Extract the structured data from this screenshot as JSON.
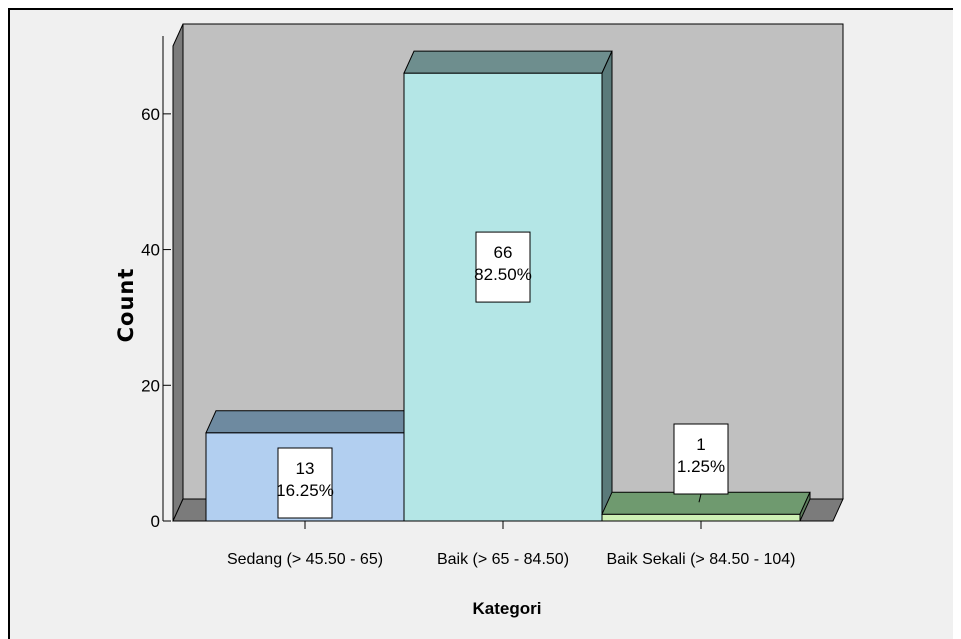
{
  "chart_data": {
    "type": "bar",
    "categories": [
      "Sedang (> 45.50 - 65)",
      "Baik (> 65 - 84.50)",
      "Baik Sekali (> 84.50 - 104)"
    ],
    "values": [
      13,
      66,
      1
    ],
    "percentages": [
      "16.25%",
      "82.50%",
      "1.25%"
    ],
    "data_labels": [
      {
        "count": "13",
        "percent": "16.25%"
      },
      {
        "count": "66",
        "percent": "82.50%"
      },
      {
        "count": "1",
        "percent": "1.25%"
      }
    ],
    "xlabel": "Kategori",
    "ylabel": "Count",
    "ylim": [
      0,
      70
    ],
    "yticks": [
      0,
      20,
      40,
      60
    ],
    "style": "3d",
    "colors": {
      "bars": [
        "#b2cff0",
        "#b4e6e6",
        "#cdf0b4"
      ],
      "bar_tops": [
        "#6e8aa0",
        "#6e8e8e",
        "#6f9a6f"
      ],
      "bar_sides": [
        "#5f7b8a",
        "#5a7a7a",
        "#5e7e5e"
      ],
      "plot_back": "#c0c0c0",
      "plot_floor": "#7b7b7b",
      "plot_left_wall": "#7b7b7b",
      "frame_background": "#f0f0f0"
    },
    "grid": false
  }
}
